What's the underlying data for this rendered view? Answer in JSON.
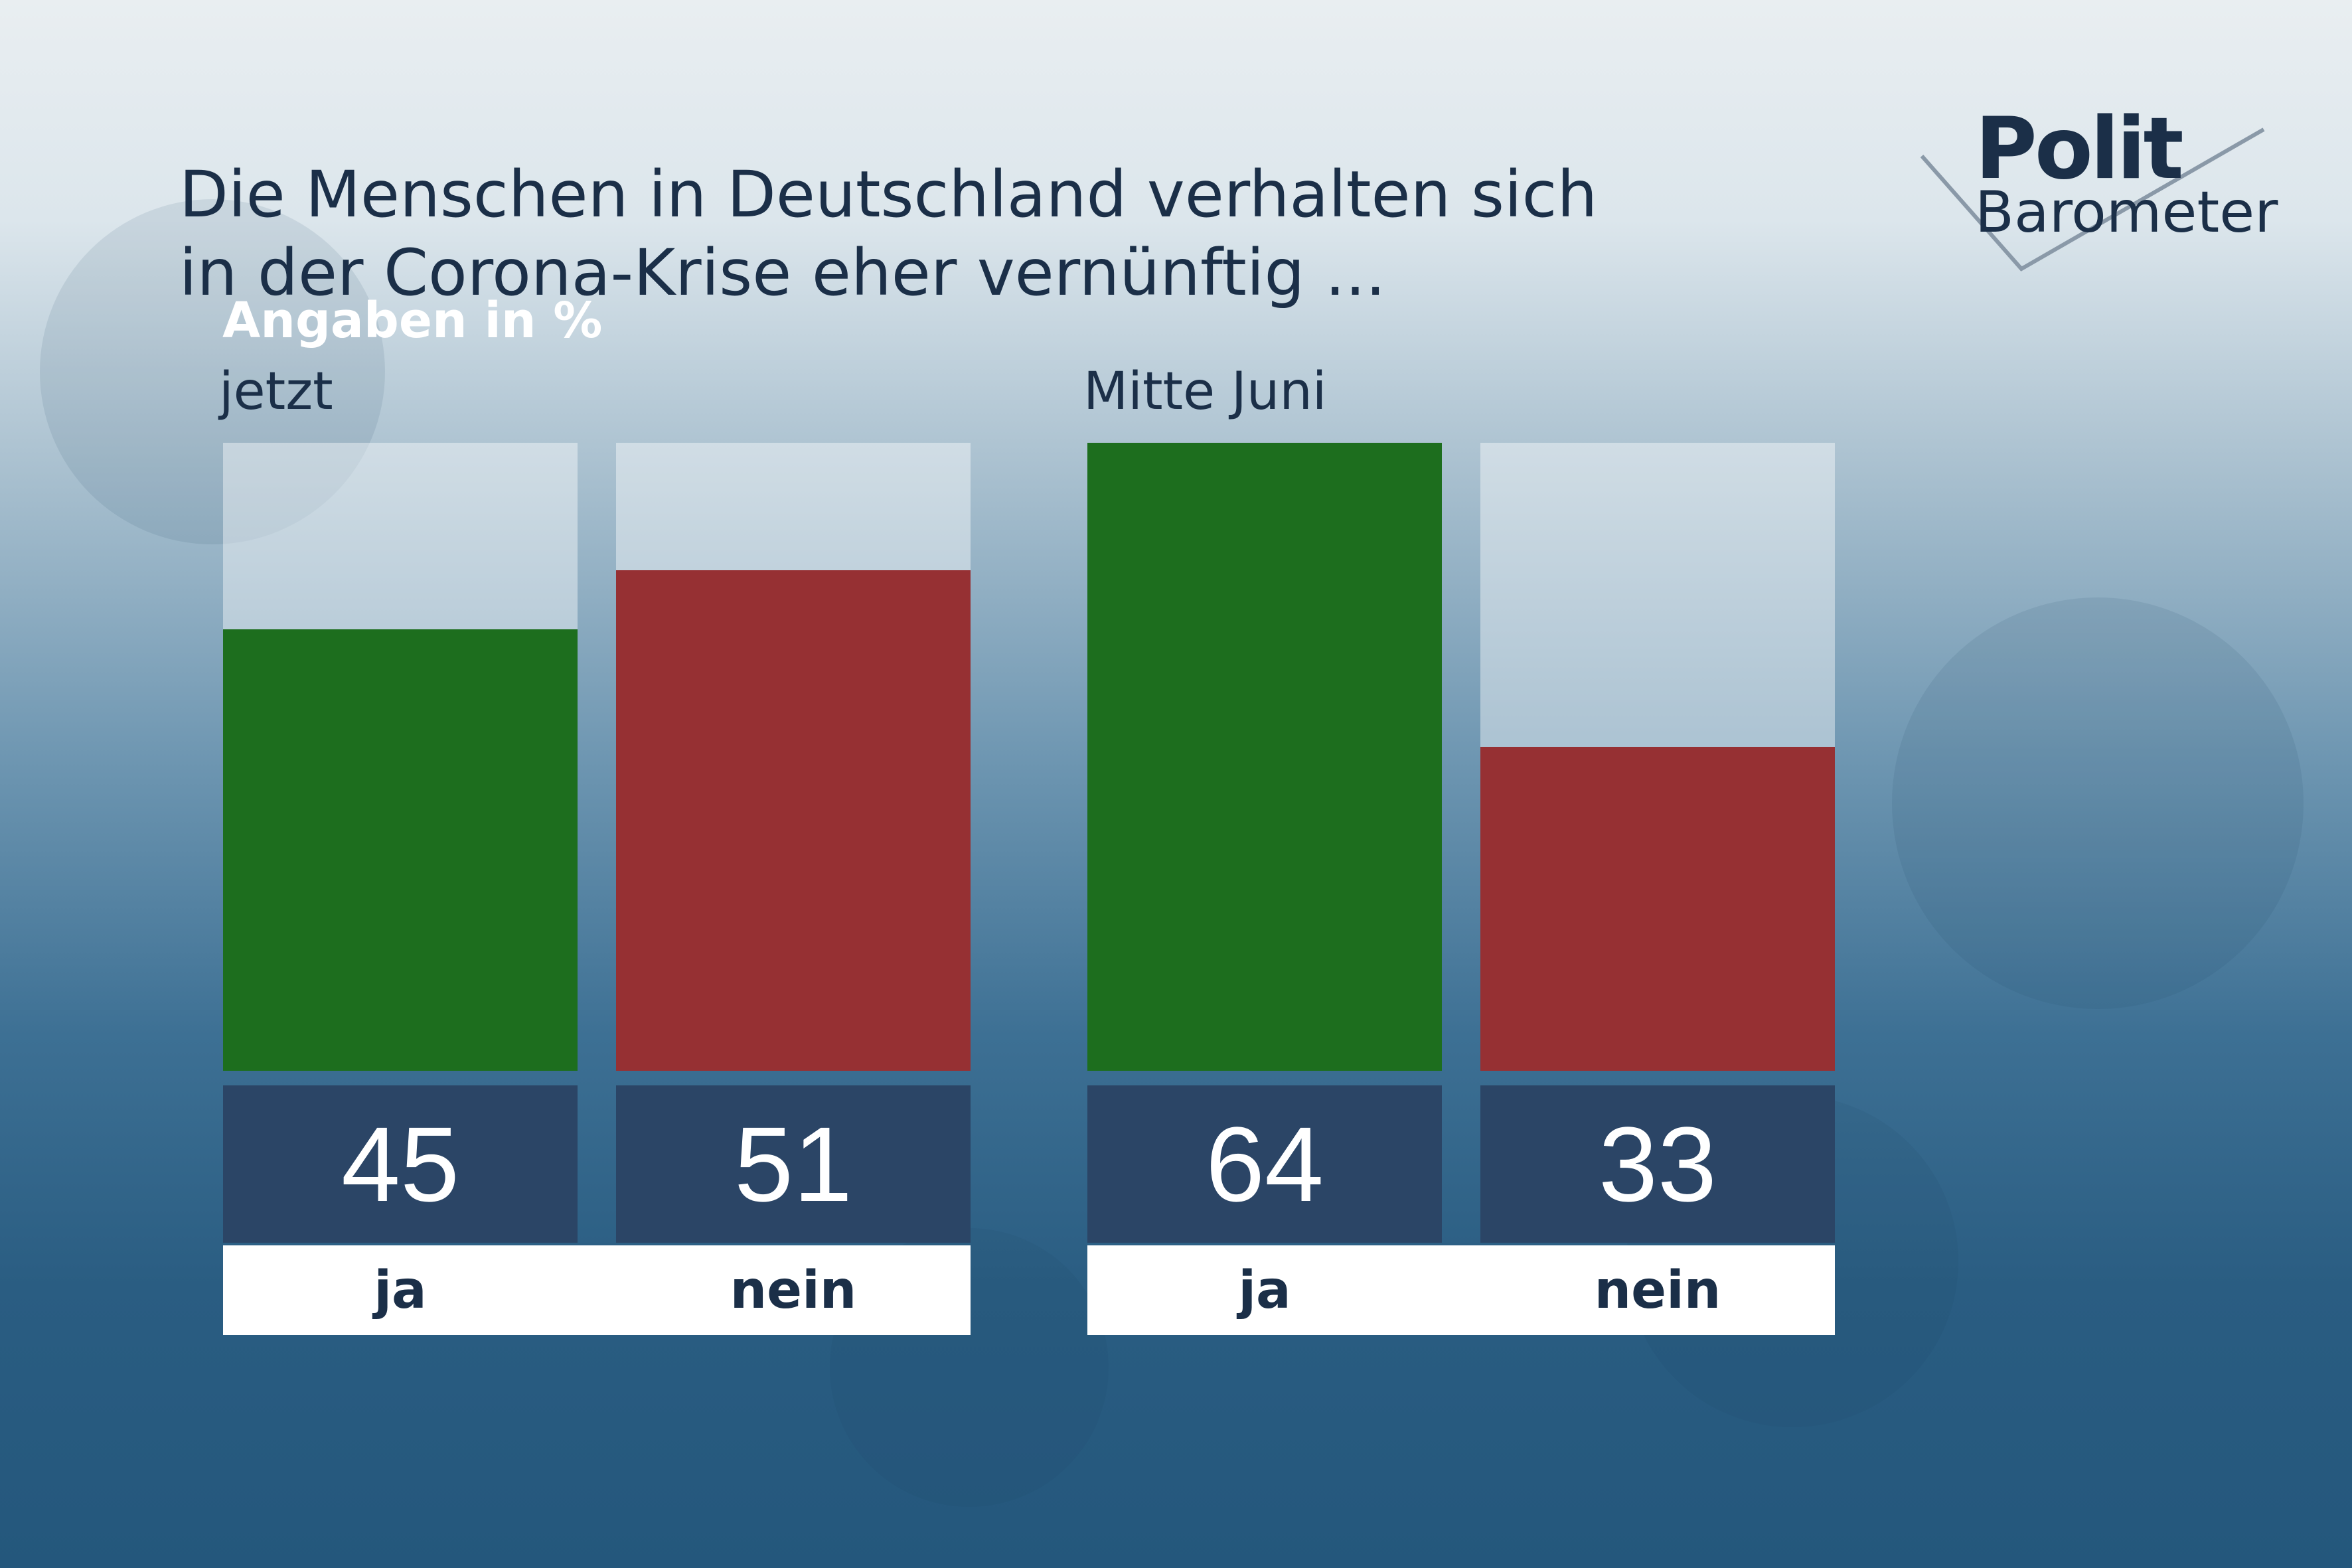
{
  "header": {
    "title_line1": "Die Menschen in Deutschland verhalten sich",
    "title_line2": "in der Corona-Krise eher vernünftig ...",
    "subtitle": "Angaben in %"
  },
  "logo": {
    "line1": "Polit",
    "line2": "Barometer"
  },
  "colors": {
    "ja": "#1d6e1e",
    "nein": "#963033",
    "value_box": "#2b4566",
    "title_text": "#1b2f48"
  },
  "chart_data": [
    {
      "type": "bar",
      "group_label": "jetzt",
      "categories": [
        "ja",
        "nein"
      ],
      "values": [
        45,
        51
      ],
      "value_labels": [
        "45",
        "51"
      ],
      "ylim": [
        0,
        64
      ]
    },
    {
      "type": "bar",
      "group_label": "Mitte Juni",
      "categories": [
        "ja",
        "nein"
      ],
      "values": [
        64,
        33
      ],
      "value_labels": [
        "64",
        "33"
      ],
      "ylim": [
        0,
        64
      ]
    }
  ]
}
